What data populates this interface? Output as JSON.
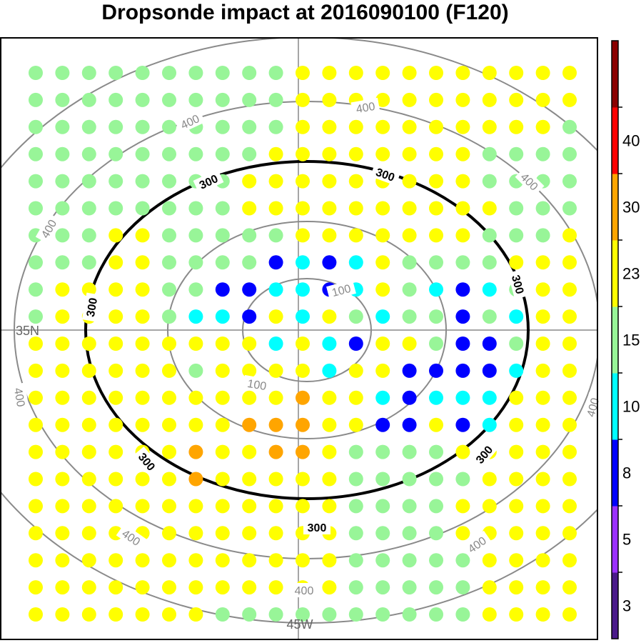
{
  "chart_data": {
    "type": "scatter",
    "title": "Dropsonde impact at 2016090100 (F120)",
    "lon_label": "45W",
    "lat_label": "35N",
    "range_ring_labels": [
      "100",
      "300",
      "400"
    ],
    "colorbar": {
      "ticks": [
        "3",
        "5",
        "8",
        "10",
        "15",
        "23",
        "30",
        "40"
      ],
      "colors": [
        "#4a1a8a",
        "#9b30ff",
        "#0000ff",
        "#00ffff",
        "#98f598",
        "#ffff00",
        "#ffa500",
        "#ff0000",
        "#8b0000"
      ]
    },
    "grid": {
      "cols": 21,
      "rows": 21,
      "values": [
        "PPPPPPPPPPYYYYYYYYYYY",
        "PPPPPPPPPPYYYYYYYYYYY",
        "PPPPPPPPPPYYYYYYYYYYP",
        "PPPPPPPPPYYYYYYYYPPPP",
        "PPPPPPPPYYYYYYYYYPPPP",
        "PPPPPPPPYYYYYYYYYYPPP",
        "PPPYYPPPPPYYYYYYYPPPY",
        "PPPYYPPPPBCBCYPPPPYYY",
        "PYYYYPPBBCCBCYPCBCPYY",
        "PYYYYPCCBYCYPCPPBPCYY",
        "YYYYYYYYYCYCBYYPBBPYY",
        "YYYYYYPYYYYCYYBBBBCYY",
        "YYYYYYYYYYOYYCBCCCYYY",
        "YYYYYYYYOOOYYBBYBCYYY",
        "YYYYYYOYYOOYPPPPYYYYY",
        "YYYYYYOYYYYYPPPPPYYYY",
        "YYYYYYYYYYYYPPPPYYYYY",
        "YYYYYYYYYYYYPPPPYYYYY",
        "YYYYYYYYYYYYPPPPPYYYY",
        "YYYYYYYYYYYYPPPPPYYYY",
        "YYYYYYYPPPPPPPPPPYYYY"
      ]
    }
  }
}
